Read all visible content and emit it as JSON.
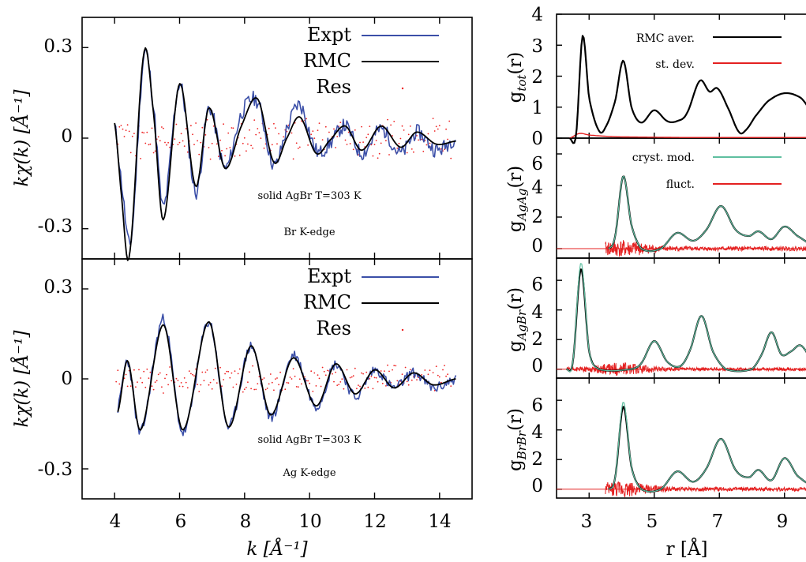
{
  "colors": {
    "expt": "#3b4fa8",
    "rmc": "#000000",
    "res": "#ee2222",
    "cryst": "#5fbfa0",
    "fluct": "#e42020",
    "std": "#e42020"
  },
  "left": {
    "xlabel": "k [Å⁻¹]",
    "ylabel": "kχ(k) [Å⁻¹]",
    "xticks": [
      "4",
      "6",
      "8",
      "10",
      "12",
      "14"
    ],
    "yticks": [
      "0.3",
      "0",
      "-0.3"
    ],
    "legend": [
      "Expt",
      "RMC",
      "Res"
    ],
    "top_ann": [
      "solid AgBr T=303 K",
      "Br K-edge"
    ],
    "bot_ann": [
      "solid AgBr T=303 K",
      "Ag K-edge"
    ]
  },
  "right": {
    "xlabel": "r [Å]",
    "xticks": [
      "3",
      "5",
      "7",
      "9"
    ],
    "panels": [
      {
        "ylabel": "g",
        "ysub": "tot",
        "yrest": "(r)",
        "yticks": [
          "0",
          "1",
          "2",
          "3",
          "4"
        ],
        "legend": [
          "RMC aver.",
          "st. dev."
        ]
      },
      {
        "ylabel": "g",
        "ysub": "AgAg",
        "yrest": "(r)",
        "yticks": [
          "0",
          "2",
          "4",
          "6"
        ],
        "legend": [
          "cryst. mod.",
          "fluct."
        ]
      },
      {
        "ylabel": "g",
        "ysub": "AgBr",
        "yrest": "(r)",
        "yticks": [
          "0",
          "2",
          "4",
          "6"
        ]
      },
      {
        "ylabel": "g",
        "ysub": "BrBr",
        "yrest": "(r)",
        "yticks": [
          "0",
          "2",
          "4",
          "6"
        ]
      }
    ]
  },
  "chart_data": [
    {
      "type": "line",
      "subtitle": "solid AgBr T=303 K, Br K-edge",
      "xlabel": "k [Å⁻¹]",
      "ylabel": "kχ(k) [Å⁻¹]",
      "xlim": [
        3,
        15
      ],
      "ylim": [
        -0.4,
        0.4
      ],
      "series": [
        {
          "name": "Expt",
          "x": [
            4.0,
            4.2,
            4.5,
            4.9,
            5.2,
            5.5,
            6.0,
            6.5,
            6.9,
            7.4,
            7.9,
            8.4,
            8.9,
            9.3,
            9.7,
            10.2,
            10.6,
            11.1,
            11.6,
            12.2,
            12.8,
            13.3,
            13.9,
            14.5
          ],
          "y": [
            0.04,
            -0.14,
            -0.34,
            0.27,
            0.1,
            -0.23,
            0.18,
            -0.18,
            0.1,
            -0.1,
            0.08,
            0.12,
            -0.09,
            0.03,
            0.11,
            -0.04,
            -0.02,
            0.04,
            -0.05,
            0.03,
            -0.05,
            0.02,
            -0.04,
            0.0
          ]
        },
        {
          "name": "RMC",
          "x": [
            4.0,
            4.2,
            4.45,
            4.9,
            5.2,
            5.5,
            6.0,
            6.5,
            6.9,
            7.4,
            7.9,
            8.4,
            8.9,
            9.3,
            9.7,
            10.2,
            10.6,
            11.1,
            11.6,
            12.2,
            12.8,
            13.3,
            13.9,
            14.5
          ],
          "y": [
            0.05,
            -0.18,
            -0.39,
            0.28,
            0.08,
            -0.27,
            0.18,
            -0.16,
            0.1,
            -0.1,
            0.04,
            0.13,
            -0.08,
            0.0,
            0.07,
            -0.05,
            -0.01,
            0.04,
            -0.04,
            0.04,
            -0.03,
            0.02,
            -0.02,
            -0.01
          ]
        },
        {
          "name": "Res",
          "description": "scattered residual points around 0 within ±0.08"
        }
      ]
    },
    {
      "type": "line",
      "subtitle": "solid AgBr T=303 K, Ag K-edge",
      "xlabel": "k [Å⁻¹]",
      "ylabel": "kχ(k) [Å⁻¹]",
      "xlim": [
        3,
        15
      ],
      "ylim": [
        -0.4,
        0.4
      ],
      "series": [
        {
          "name": "Expt",
          "x": [
            4.1,
            4.4,
            4.8,
            5.5,
            6.1,
            6.9,
            7.5,
            8.2,
            8.8,
            9.5,
            10.2,
            10.8,
            11.4,
            12.0,
            12.6,
            13.2,
            13.8,
            14.5
          ],
          "y": [
            -0.1,
            0.06,
            -0.18,
            0.2,
            -0.18,
            0.19,
            -0.16,
            0.11,
            -0.13,
            0.08,
            -0.09,
            0.05,
            -0.06,
            0.03,
            -0.03,
            0.02,
            -0.03,
            0.0
          ]
        },
        {
          "name": "RMC",
          "x": [
            4.1,
            4.4,
            4.8,
            5.5,
            6.1,
            6.9,
            7.5,
            8.2,
            8.8,
            9.5,
            10.2,
            10.8,
            11.4,
            12.0,
            12.6,
            13.2,
            13.8,
            14.5
          ],
          "y": [
            -0.11,
            0.06,
            -0.17,
            0.18,
            -0.17,
            0.19,
            -0.16,
            0.11,
            -0.12,
            0.07,
            -0.09,
            0.05,
            -0.05,
            0.03,
            -0.03,
            0.02,
            -0.02,
            0.0
          ]
        },
        {
          "name": "Res",
          "description": "scattered residual points around 0 within ±0.05"
        }
      ]
    },
    {
      "type": "line",
      "xlabel": "r [Å]",
      "ylabel": "g_tot(r)",
      "xlim": [
        2,
        10
      ],
      "ylim": [
        0,
        4
      ],
      "series": [
        {
          "name": "RMC aver.",
          "x": [
            2.4,
            2.6,
            2.8,
            3.0,
            3.3,
            3.5,
            3.8,
            4.05,
            4.3,
            4.6,
            5.0,
            5.4,
            5.7,
            6.0,
            6.4,
            6.7,
            6.95,
            7.3,
            7.6,
            7.8,
            8.1,
            8.5,
            9.0,
            9.5,
            9.9
          ],
          "y": [
            0,
            0.1,
            3.3,
            1.3,
            0.25,
            0.35,
            1.2,
            2.5,
            1.0,
            0.5,
            0.9,
            0.55,
            0.55,
            0.8,
            1.85,
            1.5,
            1.6,
            0.9,
            0.2,
            0.25,
            0.7,
            1.2,
            1.45,
            1.3,
            0.8
          ]
        },
        {
          "name": "st. dev.",
          "x": [
            2.4,
            2.7,
            3.0,
            3.5,
            4.0,
            5.0,
            6.0,
            7.0,
            8.0,
            9.0,
            9.9
          ],
          "y": [
            0,
            0.15,
            0.1,
            0.06,
            0.04,
            0.03,
            0.02,
            0.02,
            0.02,
            0.02,
            0.02
          ]
        }
      ]
    },
    {
      "type": "line",
      "xlabel": "r [Å]",
      "ylabel": "g_AgAg(r)",
      "xlim": [
        2,
        10
      ],
      "ylim": [
        -0.6,
        7.0
      ],
      "series": [
        {
          "name": "cryst. mod.",
          "x": [
            3.6,
            3.8,
            4.05,
            4.3,
            4.6,
            5.2,
            5.7,
            6.2,
            6.6,
            7.05,
            7.5,
            7.9,
            8.2,
            8.6,
            9.0,
            9.4,
            9.9
          ],
          "y": [
            0,
            0.8,
            4.6,
            1.5,
            0,
            0,
            1.0,
            0.5,
            1.2,
            2.7,
            1.2,
            0.8,
            1.1,
            0.6,
            1.4,
            0.8,
            0.2
          ]
        },
        {
          "name": "fluct.",
          "description": "noise near 0 within ±0.6"
        }
      ]
    },
    {
      "type": "line",
      "xlabel": "r [Å]",
      "ylabel": "g_AgBr(r)",
      "xlim": [
        2,
        10
      ],
      "ylim": [
        -0.6,
        7.5
      ],
      "series": [
        {
          "name": "RMC aver.",
          "x": [
            2.3,
            2.5,
            2.75,
            3.0,
            3.3,
            4.3,
            4.6,
            5.0,
            5.4,
            5.8,
            6.1,
            6.45,
            6.8,
            7.2,
            8.0,
            8.3,
            8.6,
            8.9,
            9.2,
            9.5,
            9.9
          ],
          "y": [
            0,
            0.5,
            6.8,
            1.2,
            0,
            0,
            0.4,
            1.9,
            0.5,
            0.2,
            1.3,
            3.6,
            1.2,
            0,
            0,
            1.0,
            2.5,
            1.0,
            1.2,
            1.6,
            0.5
          ]
        },
        {
          "name": "fluct.",
          "description": "noise near 0 within ±0.6"
        }
      ]
    },
    {
      "type": "line",
      "xlabel": "r [Å]",
      "ylabel": "g_BrBr(r)",
      "xlim": [
        2,
        10
      ],
      "ylim": [
        -0.6,
        7.5
      ],
      "series": [
        {
          "name": "RMC aver.",
          "x": [
            3.6,
            3.8,
            4.05,
            4.3,
            4.6,
            5.2,
            5.7,
            6.2,
            6.6,
            7.05,
            7.5,
            7.9,
            8.2,
            8.6,
            9.0,
            9.4,
            9.9
          ],
          "y": [
            0,
            0.8,
            5.6,
            1.5,
            0,
            0,
            1.2,
            0.5,
            1.4,
            3.4,
            1.3,
            0.8,
            1.3,
            0.6,
            2.1,
            0.9,
            0.2
          ]
        },
        {
          "name": "fluct.",
          "description": "noise near 0 within ±0.6"
        }
      ]
    }
  ]
}
